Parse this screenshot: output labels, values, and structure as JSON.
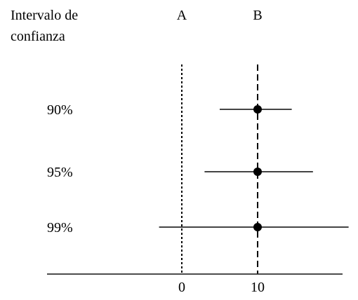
{
  "chart_data": {
    "type": "scatter",
    "title": "",
    "y_header": [
      "Intervalo de",
      "confianza"
    ],
    "xlabel": "",
    "xlim": [
      -17.5,
      21
    ],
    "x_ticks": [
      {
        "value": 0,
        "label": "0"
      },
      {
        "value": 10,
        "label": "10"
      }
    ],
    "reference_lines": [
      {
        "label": "A",
        "value": 0,
        "style": "dotted"
      },
      {
        "label": "B",
        "value": 10,
        "style": "dashed"
      }
    ],
    "categories": [
      "90%",
      "95%",
      "99%"
    ],
    "series": [
      {
        "points": [
          {
            "label": "90%",
            "estimate": 10,
            "lower": 5,
            "upper": 14.5
          },
          {
            "label": "95%",
            "estimate": 10,
            "lower": 3,
            "upper": 17.3
          },
          {
            "label": "99%",
            "estimate": 10,
            "lower": -3,
            "upper": 22
          }
        ]
      }
    ],
    "grid": false,
    "colors": {
      "ink": "#000000",
      "interval": "#444444",
      "background": "#ffffff"
    }
  }
}
